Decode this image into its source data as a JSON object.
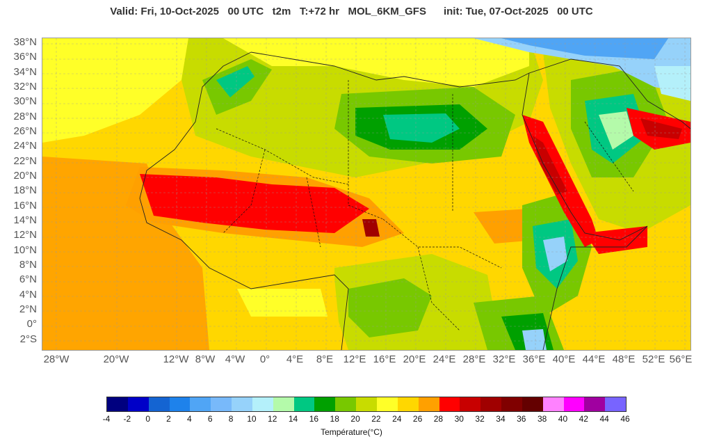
{
  "header": {
    "title": "Valid: Fri, 10-Oct-2025   00 UTC   t2m   T:+72 hr   MOL_6KM_GFS      init: Tue, 07-Oct-2025   00 UTC"
  },
  "map": {
    "lat_labels": [
      "38°N",
      "36°N",
      "34°N",
      "32°N",
      "30°N",
      "28°N",
      "26°N",
      "24°N",
      "22°N",
      "20°N",
      "18°N",
      "16°N",
      "14°N",
      "12°N",
      "10°N",
      "8°N",
      "6°N",
      "4°N",
      "2°N",
      "0°",
      "2°S"
    ],
    "lon_labels": [
      "28°W",
      "20°W",
      "12°W",
      "8°W",
      "4°W",
      "0°",
      "4°E",
      "8°E",
      "12°E",
      "16°E",
      "20°E",
      "24°E",
      "28°E",
      "32°E",
      "36°E",
      "40°E",
      "44°E",
      "48°E",
      "52°E",
      "56°E"
    ],
    "background_color": "#f7c600"
  },
  "colorbar": {
    "title": "Température(°C)",
    "ticks": [
      "-4",
      "-2",
      "0",
      "2",
      "4",
      "6",
      "8",
      "10",
      "12",
      "14",
      "16",
      "18",
      "20",
      "22",
      "24",
      "26",
      "28",
      "30",
      "32",
      "34",
      "36",
      "38",
      "40",
      "42",
      "44",
      "46"
    ],
    "colors": [
      "#00007f",
      "#0000c8",
      "#1464d2",
      "#1e82eb",
      "#50a5f5",
      "#78b9fa",
      "#96d2fa",
      "#b4f0fa",
      "#b4faaa",
      "#00c882",
      "#00a000",
      "#78c800",
      "#c8dc00",
      "#ffff28",
      "#ffd700",
      "#ffa000",
      "#ff0000",
      "#c80000",
      "#a00000",
      "#800000",
      "#640000",
      "#ff82ff",
      "#ff00ff",
      "#a000a0",
      "#7864ff"
    ]
  }
}
